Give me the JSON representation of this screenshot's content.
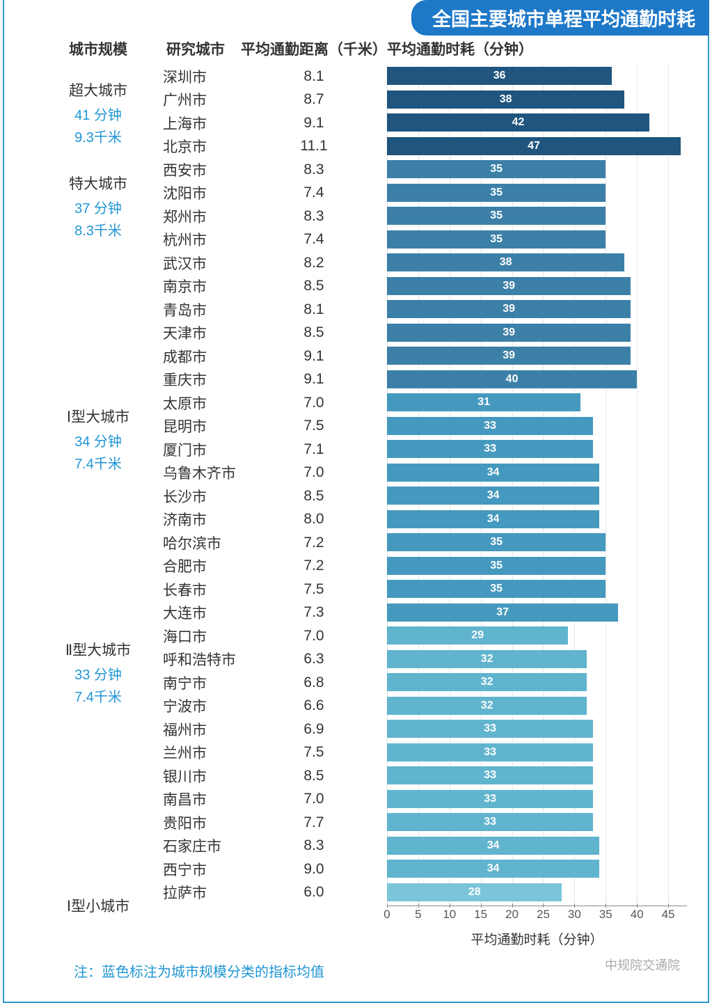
{
  "title": "全国主要城市单程平均通勤时耗",
  "columns": {
    "scale": "城市规模",
    "city": "研究城市",
    "distance": "平均通勤距离（千米）",
    "time": "平均通勤时耗（分钟）"
  },
  "axis": {
    "ticks": [
      0,
      5,
      10,
      15,
      20,
      25,
      30,
      35,
      40,
      45
    ],
    "max": 48,
    "label": "平均通勤时耗（分钟）"
  },
  "note": "注：蓝色标注为城市规模分类的指标均值",
  "watermark": "中规院交通院",
  "colors": {
    "group0": "#1f557e",
    "group1": "#3c80a8",
    "group2": "#4699be",
    "group3": "#60b4ce",
    "group4": "#7bc5d8",
    "accent": "#2196d4",
    "border": "#3499cc",
    "banner": "#1e78c8",
    "grid": "#e6e6e6",
    "text": "#333333"
  },
  "groups": [
    {
      "name": "超大城市",
      "avg_time": "41 分钟",
      "avg_dist": "9.3千米",
      "color": "#1f557e",
      "cities": [
        {
          "city": "深圳市",
          "dist": "8.1",
          "time": 36
        },
        {
          "city": "广州市",
          "dist": "8.7",
          "time": 38
        },
        {
          "city": "上海市",
          "dist": "9.1",
          "time": 42
        },
        {
          "city": "北京市",
          "dist": "11.1",
          "time": 47
        }
      ]
    },
    {
      "name": "特大城市",
      "avg_time": "37 分钟",
      "avg_dist": "8.3千米",
      "color": "#3c80a8",
      "cities": [
        {
          "city": "西安市",
          "dist": "8.3",
          "time": 35
        },
        {
          "city": "沈阳市",
          "dist": "7.4",
          "time": 35
        },
        {
          "city": "郑州市",
          "dist": "8.3",
          "time": 35
        },
        {
          "city": "杭州市",
          "dist": "7.4",
          "time": 35
        },
        {
          "city": "武汉市",
          "dist": "8.2",
          "time": 38
        },
        {
          "city": "南京市",
          "dist": "8.5",
          "time": 39
        },
        {
          "city": "青岛市",
          "dist": "8.1",
          "time": 39
        },
        {
          "city": "天津市",
          "dist": "8.5",
          "time": 39
        },
        {
          "city": "成都市",
          "dist": "9.1",
          "time": 39
        },
        {
          "city": "重庆市",
          "dist": "9.1",
          "time": 40
        }
      ]
    },
    {
      "name": "Ⅰ型大城市",
      "avg_time": "34 分钟",
      "avg_dist": "7.4千米",
      "color": "#4699be",
      "cities": [
        {
          "city": "太原市",
          "dist": "7.0",
          "time": 31
        },
        {
          "city": "昆明市",
          "dist": "7.5",
          "time": 33
        },
        {
          "city": "厦门市",
          "dist": "7.1",
          "time": 33
        },
        {
          "city": "乌鲁木齐市",
          "dist": "7.0",
          "time": 34
        },
        {
          "city": "长沙市",
          "dist": "8.5",
          "time": 34
        },
        {
          "city": "济南市",
          "dist": "8.0",
          "time": 34
        },
        {
          "city": "哈尔滨市",
          "dist": "7.2",
          "time": 35
        },
        {
          "city": "合肥市",
          "dist": "7.2",
          "time": 35
        },
        {
          "city": "长春市",
          "dist": "7.5",
          "time": 35
        },
        {
          "city": "大连市",
          "dist": "7.3",
          "time": 37
        }
      ]
    },
    {
      "name": "Ⅱ型大城市",
      "avg_time": "33 分钟",
      "avg_dist": "7.4千米",
      "color": "#60b4ce",
      "cities": [
        {
          "city": "海口市",
          "dist": "7.0",
          "time": 29
        },
        {
          "city": "呼和浩特市",
          "dist": "6.3",
          "time": 32
        },
        {
          "city": "南宁市",
          "dist": "6.8",
          "time": 32
        },
        {
          "city": "宁波市",
          "dist": "6.6",
          "time": 32
        },
        {
          "city": "福州市",
          "dist": "6.9",
          "time": 33
        },
        {
          "city": "兰州市",
          "dist": "7.5",
          "time": 33
        },
        {
          "city": "银川市",
          "dist": "8.5",
          "time": 33
        },
        {
          "city": "南昌市",
          "dist": "7.0",
          "time": 33
        },
        {
          "city": "贵阳市",
          "dist": "7.7",
          "time": 33
        },
        {
          "city": "石家庄市",
          "dist": "8.3",
          "time": 34
        },
        {
          "city": "西宁市",
          "dist": "9.0",
          "time": 34
        }
      ]
    },
    {
      "name": "Ⅰ型小城市",
      "avg_time": "",
      "avg_dist": "",
      "color": "#7bc5d8",
      "cities": [
        {
          "city": "拉萨市",
          "dist": "6.0",
          "time": 28
        }
      ]
    }
  ]
}
